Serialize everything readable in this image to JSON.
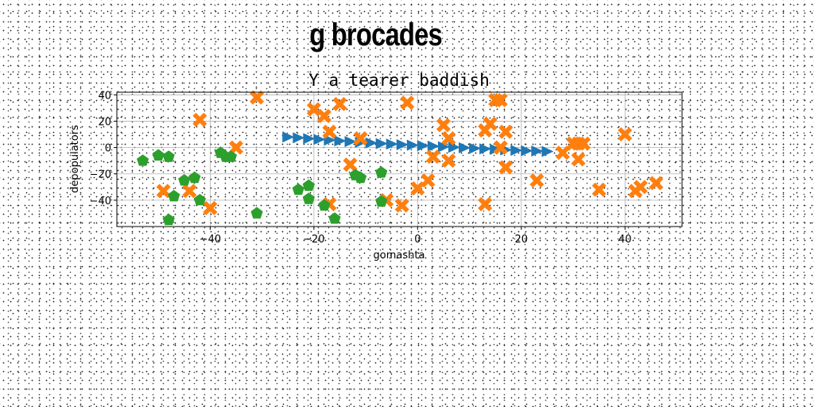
{
  "suptitle": "g brocades",
  "chart_data": {
    "type": "scatter",
    "title": "Y a tearer baddish",
    "xlabel": "gomashta",
    "ylabel": "depopulators",
    "xlim": [
      -58,
      51
    ],
    "ylim": [
      -60,
      42
    ],
    "xticks": [
      -40,
      -20,
      0,
      20,
      40
    ],
    "yticks": [
      -40,
      -20,
      0,
      20,
      40
    ],
    "grid": true,
    "series": [
      {
        "marker": "triangle-right",
        "color": "#1f77b4",
        "x": [
          -25,
          -23,
          -21,
          -19,
          -17,
          -15,
          -13,
          -11,
          -9,
          -7,
          -5,
          -3,
          -1,
          1,
          3,
          5,
          7,
          9,
          11,
          13,
          15,
          17,
          19,
          21,
          23,
          25
        ],
        "y": [
          8,
          7.4,
          6.8,
          6.2,
          5.6,
          5,
          4.5,
          4,
          3.5,
          3,
          2.6,
          2.2,
          1.8,
          1.4,
          1,
          0.6,
          0.2,
          -0.2,
          -0.6,
          -1,
          -1.4,
          -1.8,
          -2.1,
          -2.4,
          -2.7,
          -3
        ]
      },
      {
        "marker": "x-filled",
        "color": "#ff7f0e",
        "x": [
          -42,
          -31,
          -35,
          -49,
          -44,
          -40,
          -20,
          -18,
          -15,
          -17,
          -13,
          -11,
          -17,
          -6,
          -2,
          -3,
          0,
          2,
          3,
          5,
          6,
          6,
          13,
          14,
          15,
          16,
          16,
          17,
          13,
          16,
          17,
          23,
          28,
          30,
          31,
          32,
          31,
          35,
          40,
          42,
          43,
          46
        ],
        "y": [
          21,
          38,
          0,
          -33,
          -33,
          -46,
          29,
          24,
          33,
          12,
          -13,
          7,
          -43,
          -40,
          34,
          -44,
          -31,
          -25,
          -7,
          17,
          7,
          -10,
          13,
          18,
          36,
          36,
          0,
          12,
          -43,
          0,
          -15,
          -25,
          -4,
          3,
          3,
          3,
          -9,
          -32,
          10,
          -33,
          -30,
          -27
        ]
      },
      {
        "marker": "pentagon",
        "color": "#2ca02c",
        "x": [
          -53,
          -50,
          -48,
          -47,
          -45,
          -43,
          -42,
          -38,
          -37,
          -36,
          -31,
          -23,
          -21,
          -21,
          -18,
          -16,
          -12,
          -11,
          -7,
          -7,
          -48
        ],
        "y": [
          -10,
          -6,
          -7,
          -37,
          -25,
          -23,
          -40,
          -4,
          -7,
          -7,
          -50,
          -32,
          -29,
          -39,
          -44,
          -54,
          -21,
          -23,
          -19,
          -41,
          -55
        ]
      }
    ]
  }
}
